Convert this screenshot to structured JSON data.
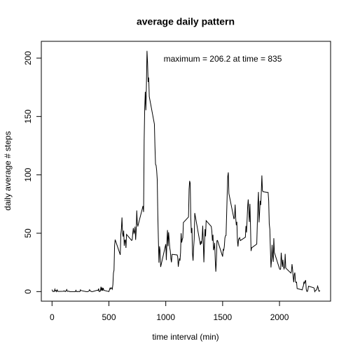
{
  "chart_data": {
    "type": "line",
    "title": "average daily pattern",
    "xlabel": "time interval (min)",
    "ylabel": "daily average # steps",
    "annotation": "maximum = 206.2 at time = 835",
    "color": "#000000",
    "xlim": [
      -94.2,
      2449.2
    ],
    "ylim": [
      -8.2,
      214.4
    ],
    "xticks": [
      0,
      500,
      1000,
      1500,
      2000
    ],
    "yticks": [
      0,
      50,
      100,
      150,
      200
    ],
    "x": [
      0,
      5,
      10,
      15,
      20,
      25,
      30,
      35,
      40,
      45,
      50,
      55,
      100,
      105,
      110,
      115,
      120,
      125,
      130,
      135,
      140,
      145,
      150,
      155,
      200,
      205,
      210,
      215,
      220,
      225,
      230,
      235,
      240,
      245,
      250,
      255,
      300,
      305,
      310,
      315,
      320,
      325,
      330,
      335,
      340,
      345,
      350,
      355,
      400,
      405,
      410,
      415,
      420,
      425,
      430,
      435,
      440,
      445,
      450,
      455,
      500,
      505,
      510,
      515,
      520,
      525,
      530,
      535,
      540,
      545,
      550,
      555,
      600,
      605,
      610,
      615,
      620,
      625,
      630,
      635,
      640,
      645,
      650,
      655,
      700,
      705,
      710,
      715,
      720,
      725,
      730,
      735,
      740,
      745,
      750,
      755,
      800,
      805,
      810,
      815,
      820,
      825,
      830,
      835,
      840,
      845,
      850,
      855,
      900,
      905,
      910,
      915,
      920,
      925,
      930,
      935,
      940,
      945,
      950,
      955,
      1000,
      1005,
      1010,
      1015,
      1020,
      1025,
      1030,
      1035,
      1040,
      1045,
      1050,
      1055,
      1100,
      1105,
      1110,
      1115,
      1120,
      1125,
      1130,
      1135,
      1140,
      1145,
      1150,
      1155,
      1200,
      1205,
      1210,
      1215,
      1220,
      1225,
      1230,
      1235,
      1240,
      1245,
      1250,
      1255,
      1300,
      1305,
      1310,
      1315,
      1320,
      1325,
      1330,
      1335,
      1340,
      1345,
      1350,
      1355,
      1400,
      1405,
      1410,
      1415,
      1420,
      1425,
      1430,
      1435,
      1440,
      1445,
      1450,
      1455,
      1500,
      1505,
      1510,
      1515,
      1520,
      1525,
      1530,
      1535,
      1540,
      1545,
      1550,
      1555,
      1600,
      1605,
      1610,
      1615,
      1620,
      1625,
      1630,
      1635,
      1640,
      1645,
      1650,
      1655,
      1700,
      1705,
      1710,
      1715,
      1720,
      1725,
      1730,
      1735,
      1740,
      1745,
      1750,
      1755,
      1800,
      1805,
      1810,
      1815,
      1820,
      1825,
      1830,
      1835,
      1840,
      1845,
      1850,
      1855,
      1900,
      1905,
      1910,
      1915,
      1920,
      1925,
      1930,
      1935,
      1940,
      1945,
      1950,
      1955,
      2000,
      2005,
      2010,
      2015,
      2020,
      2025,
      2030,
      2035,
      2040,
      2045,
      2050,
      2055,
      2100,
      2105,
      2110,
      2115,
      2120,
      2125,
      2130,
      2135,
      2140,
      2145,
      2150,
      2155,
      2200,
      2205,
      2210,
      2215,
      2220,
      2225,
      2230,
      2235,
      2240,
      2245,
      2250,
      2255,
      2300,
      2305,
      2310,
      2315,
      2320,
      2325,
      2330,
      2335,
      2340,
      2345,
      2350,
      2355
    ],
    "y": [
      1.7,
      0.3,
      0.1,
      0.2,
      0.1,
      2.1,
      0.5,
      0.9,
      0,
      1.5,
      0.3,
      0.1,
      0.3,
      0.7,
      0.2,
      0.3,
      0,
      1.1,
      1.8,
      0.2,
      0.2,
      0.4,
      0.3,
      0,
      0,
      0,
      1.1,
      0,
      0,
      0.1,
      0,
      0.2,
      0,
      0,
      1.5,
      0.9,
      0,
      0,
      0,
      0,
      0.2,
      0.6,
      1.6,
      0.6,
      0.5,
      0.1,
      0,
      0,
      1.2,
      0.9,
      2.6,
      0,
      0.3,
      0.4,
      4.1,
      0.7,
      3.5,
      0.8,
      3.1,
      1.1,
      0,
      1.6,
      3.0,
      2.2,
      3.3,
      3.0,
      2.1,
      6.1,
      16.0,
      18.3,
      39.5,
      44.5,
      31.5,
      49.3,
      53.8,
      63.5,
      50.0,
      47.1,
      52.2,
      39.3,
      44.0,
      44.2,
      37.4,
      49.0,
      43.8,
      44.4,
      50.5,
      54.5,
      49.9,
      51.0,
      55.7,
      44.3,
      52.3,
      69.5,
      57.8,
      56.2,
      73.4,
      68.2,
      129.4,
      157.5,
      171.2,
      155.4,
      177.3,
      206.2,
      195.9,
      179.6,
      183.4,
      167.0,
      143.5,
      124.0,
      109.1,
      108.1,
      103.7,
      96.0,
      66.2,
      45.2,
      24.8,
      38.8,
      35.0,
      21.1,
      40.6,
      27.0,
      42.4,
      52.7,
      38.9,
      50.8,
      44.3,
      37.4,
      34.7,
      28.3,
      25.1,
      31.9,
      31.4,
      29.7,
      21.3,
      25.5,
      28.4,
      26.5,
      33.4,
      50.0,
      42.0,
      44.6,
      46.0,
      59.2,
      63.9,
      87.7,
      94.8,
      92.8,
      63.4,
      50.2,
      54.5,
      32.4,
      26.5,
      37.7,
      45.1,
      67.3,
      42.3,
      39.9,
      43.3,
      41.0,
      46.2,
      56.4,
      42.8,
      25.1,
      40.0,
      53.5,
      47.3,
      60.8,
      55.8,
      52.0,
      43.6,
      48.7,
      35.5,
      37.5,
      41.8,
      27.5,
      17.1,
      26.1,
      43.6,
      43.8,
      30.0,
      36.1,
      35.5,
      38.8,
      46.0,
      47.8,
      48.1,
      65.3,
      82.9,
      98.7,
      102.1,
      84.0,
      62.1,
      64.1,
      74.5,
      63.2,
      56.9,
      59.8,
      43.9,
      38.6,
      44.7,
      45.5,
      46.2,
      43.7,
      46.6,
      56.3,
      50.7,
      61.2,
      72.7,
      78.9,
      68.9,
      59.7,
      75.1,
      56.5,
      34.8,
      37.5,
      40.7,
      58.0,
      74.7,
      85.3,
      59.3,
      67.8,
      77.7,
      74.2,
      85.3,
      99.5,
      86.6,
      85.6,
      84.9,
      77.8,
      58.0,
      53.4,
      36.3,
      20.7,
      27.4,
      40.0,
      30.2,
      25.5,
      45.7,
      33.5,
      19.6,
      19.0,
      19.3,
      33.3,
      26.8,
      21.2,
      27.3,
      21.3,
      19.5,
      21.3,
      32.3,
      20.2,
      15.9,
      17.2,
      23.5,
      19.2,
      12.5,
      8.0,
      14.7,
      16.3,
      8.7,
      7.8,
      8.1,
      2.6,
      1.5,
      3.7,
      4.8,
      8.5,
      7.1,
      8.7,
      9.8,
      2.2,
      0.3,
      0.1,
      1.6,
      4.6,
      3.3,
      2.8,
      0,
      0.8,
      1.0,
      1.6,
      2.6,
      4.7,
      3.3,
      0.6,
      0.2,
      1.1
    ]
  }
}
